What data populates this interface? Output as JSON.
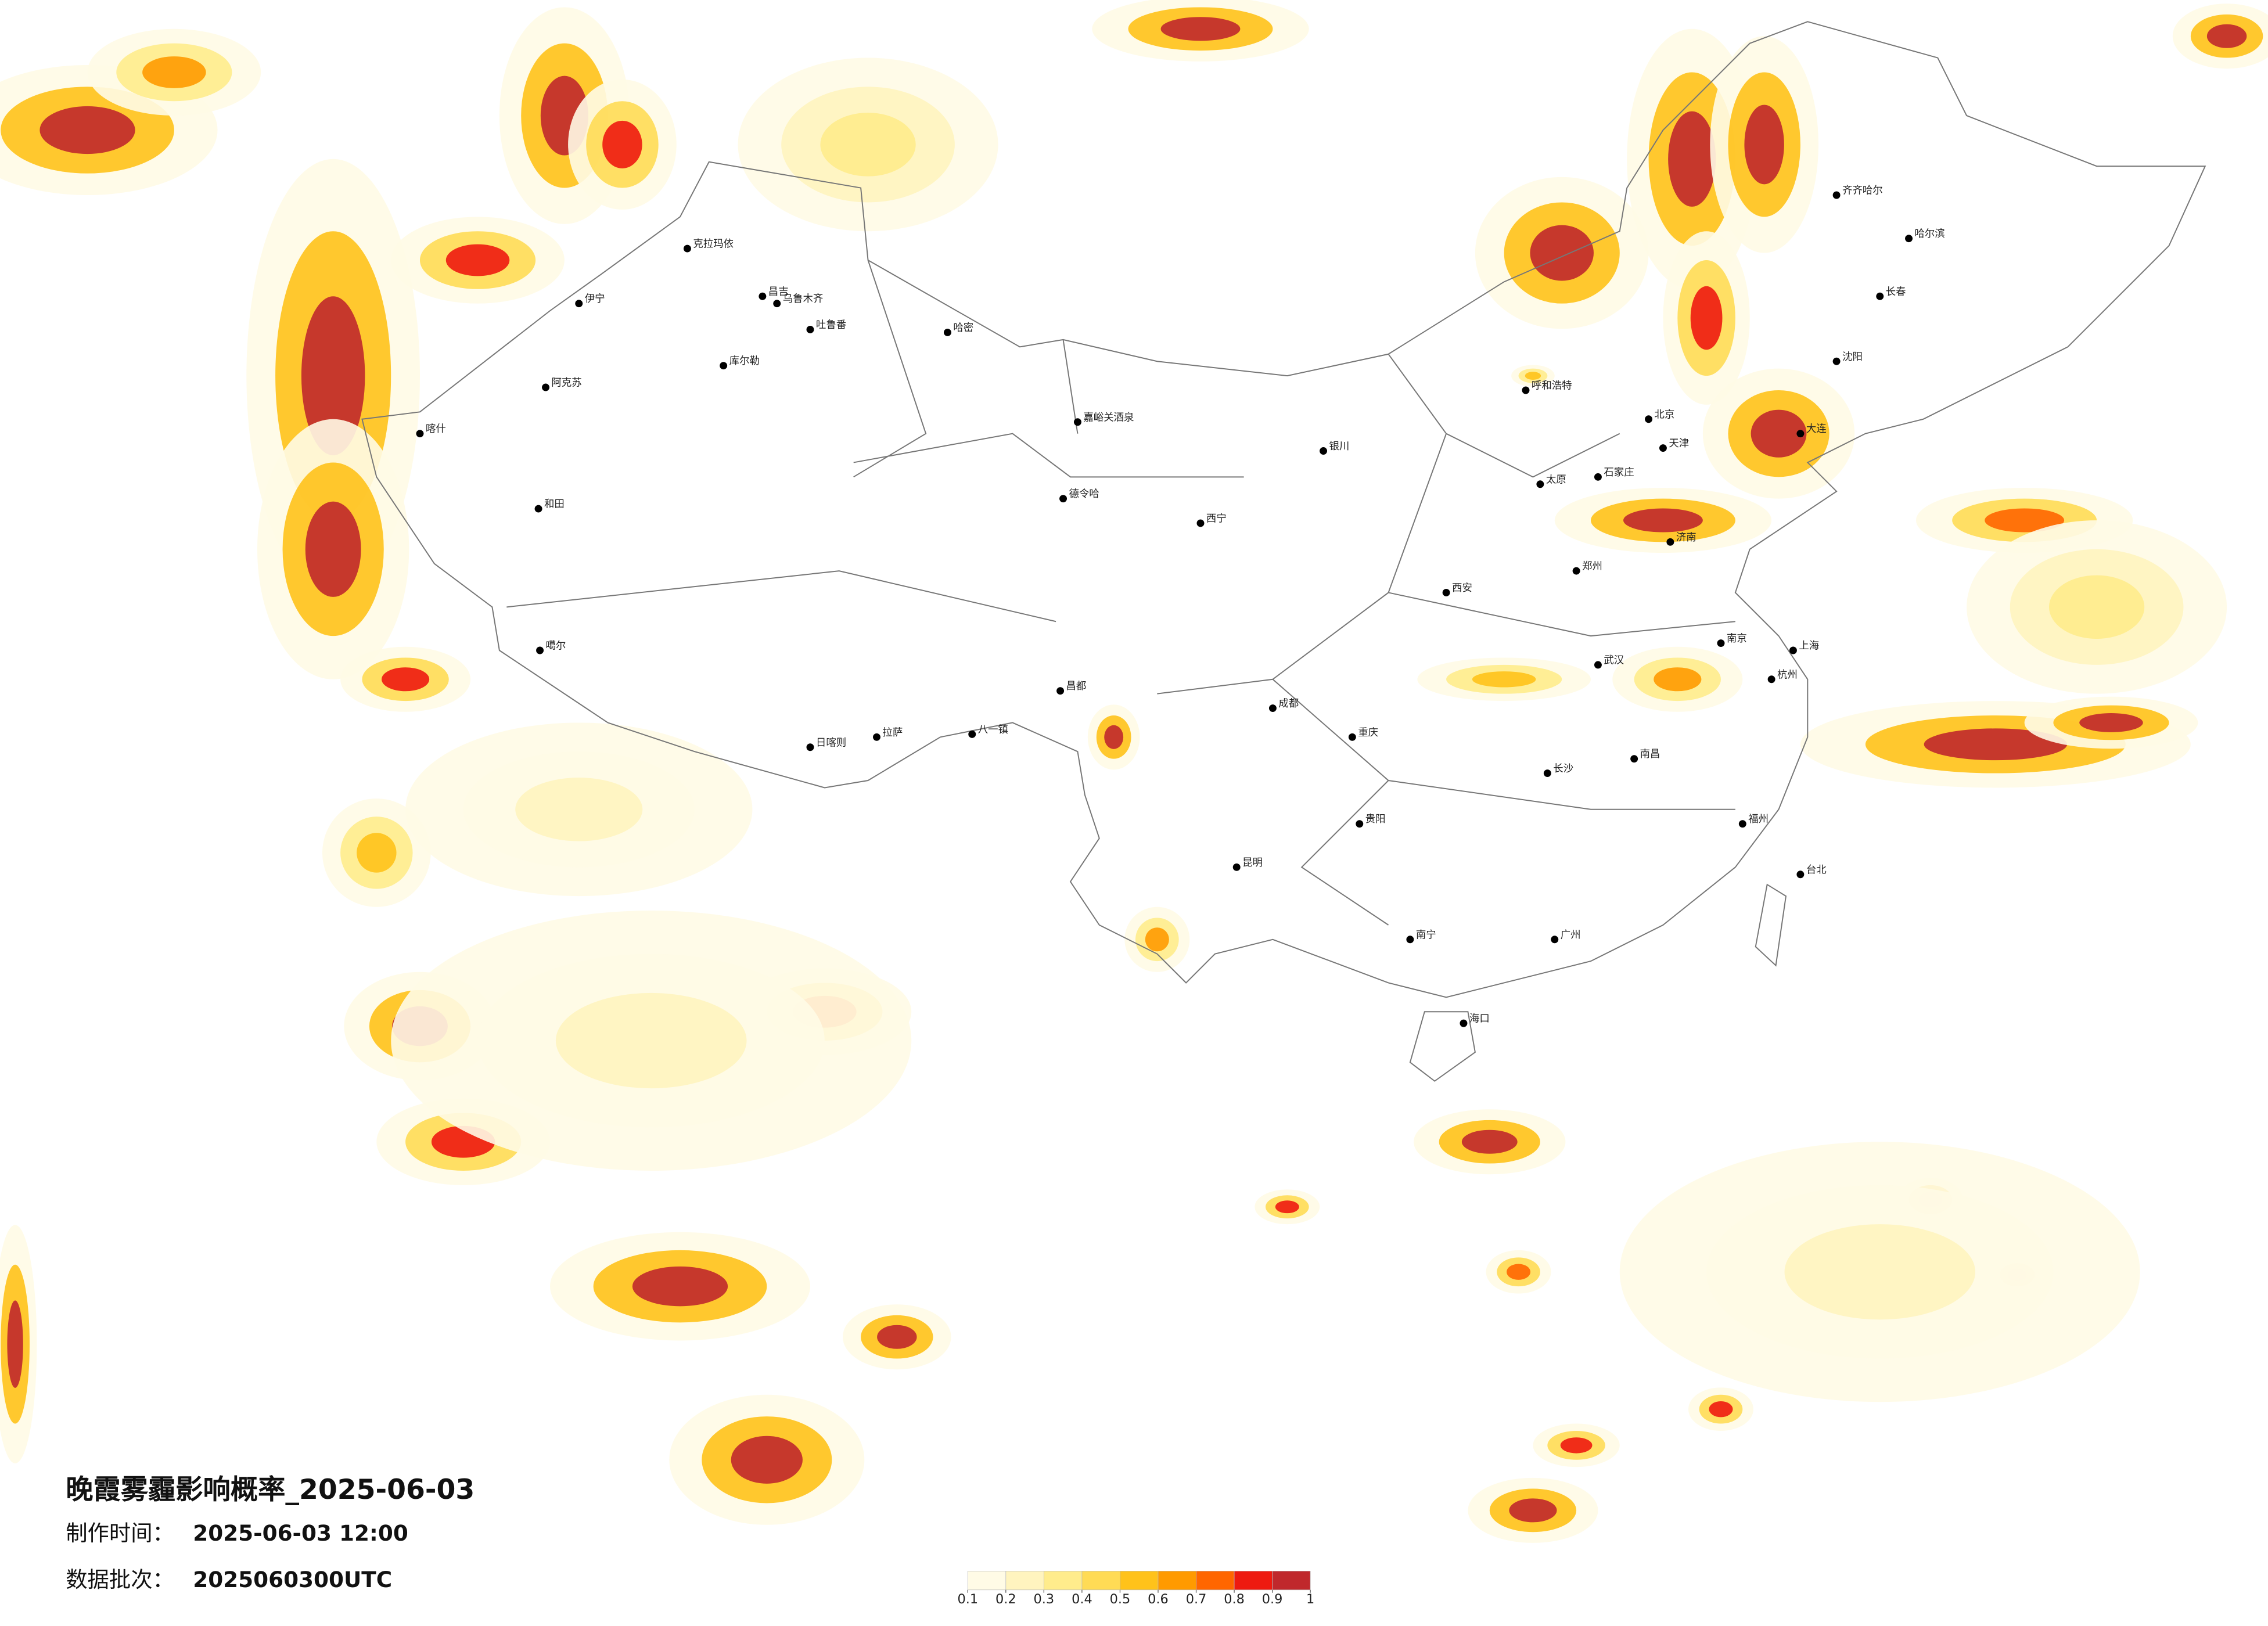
{
  "title": "晚霞雾霾影响概率_2025-06-03",
  "produced_label": "制作时间：",
  "produced_time": "2025-06-03 12:00",
  "batch_label": "数据批次：",
  "batch": "2025060300UTC",
  "colorbar": {
    "ticks": [
      0.1,
      0.2,
      0.3,
      0.4,
      0.5,
      0.6,
      0.7,
      0.8,
      0.9,
      1
    ],
    "colors": [
      "#fffbe6",
      "#fff4bf",
      "#ffec8c",
      "#ffdb55",
      "#ffc21a",
      "#ff9a00",
      "#ff6600",
      "#ee1a10",
      "#c0282c"
    ]
  },
  "cities": [
    "克拉玛依",
    "昌吉",
    "乌鲁木齐",
    "吐鲁番",
    "哈密",
    "伊宁",
    "库尔勒",
    "阿克苏",
    "喀什",
    "和田",
    "噶尔",
    "日喀则",
    "拉萨",
    "八一镇",
    "昌都",
    "嘉峪关酒泉",
    "德令哈",
    "西宁",
    "银川",
    "呼和浩特",
    "北京",
    "天津",
    "石家庄",
    "太原",
    "济南",
    "郑州",
    "西安",
    "成都",
    "重庆",
    "武汉",
    "南京",
    "上海",
    "杭州",
    "长沙",
    "南昌",
    "福州",
    "贵阳",
    "昆明",
    "南宁",
    "广州",
    "海口",
    "台北",
    "哈尔滨",
    "长春",
    "沈阳",
    "齐齐哈尔",
    "大连"
  ]
}
